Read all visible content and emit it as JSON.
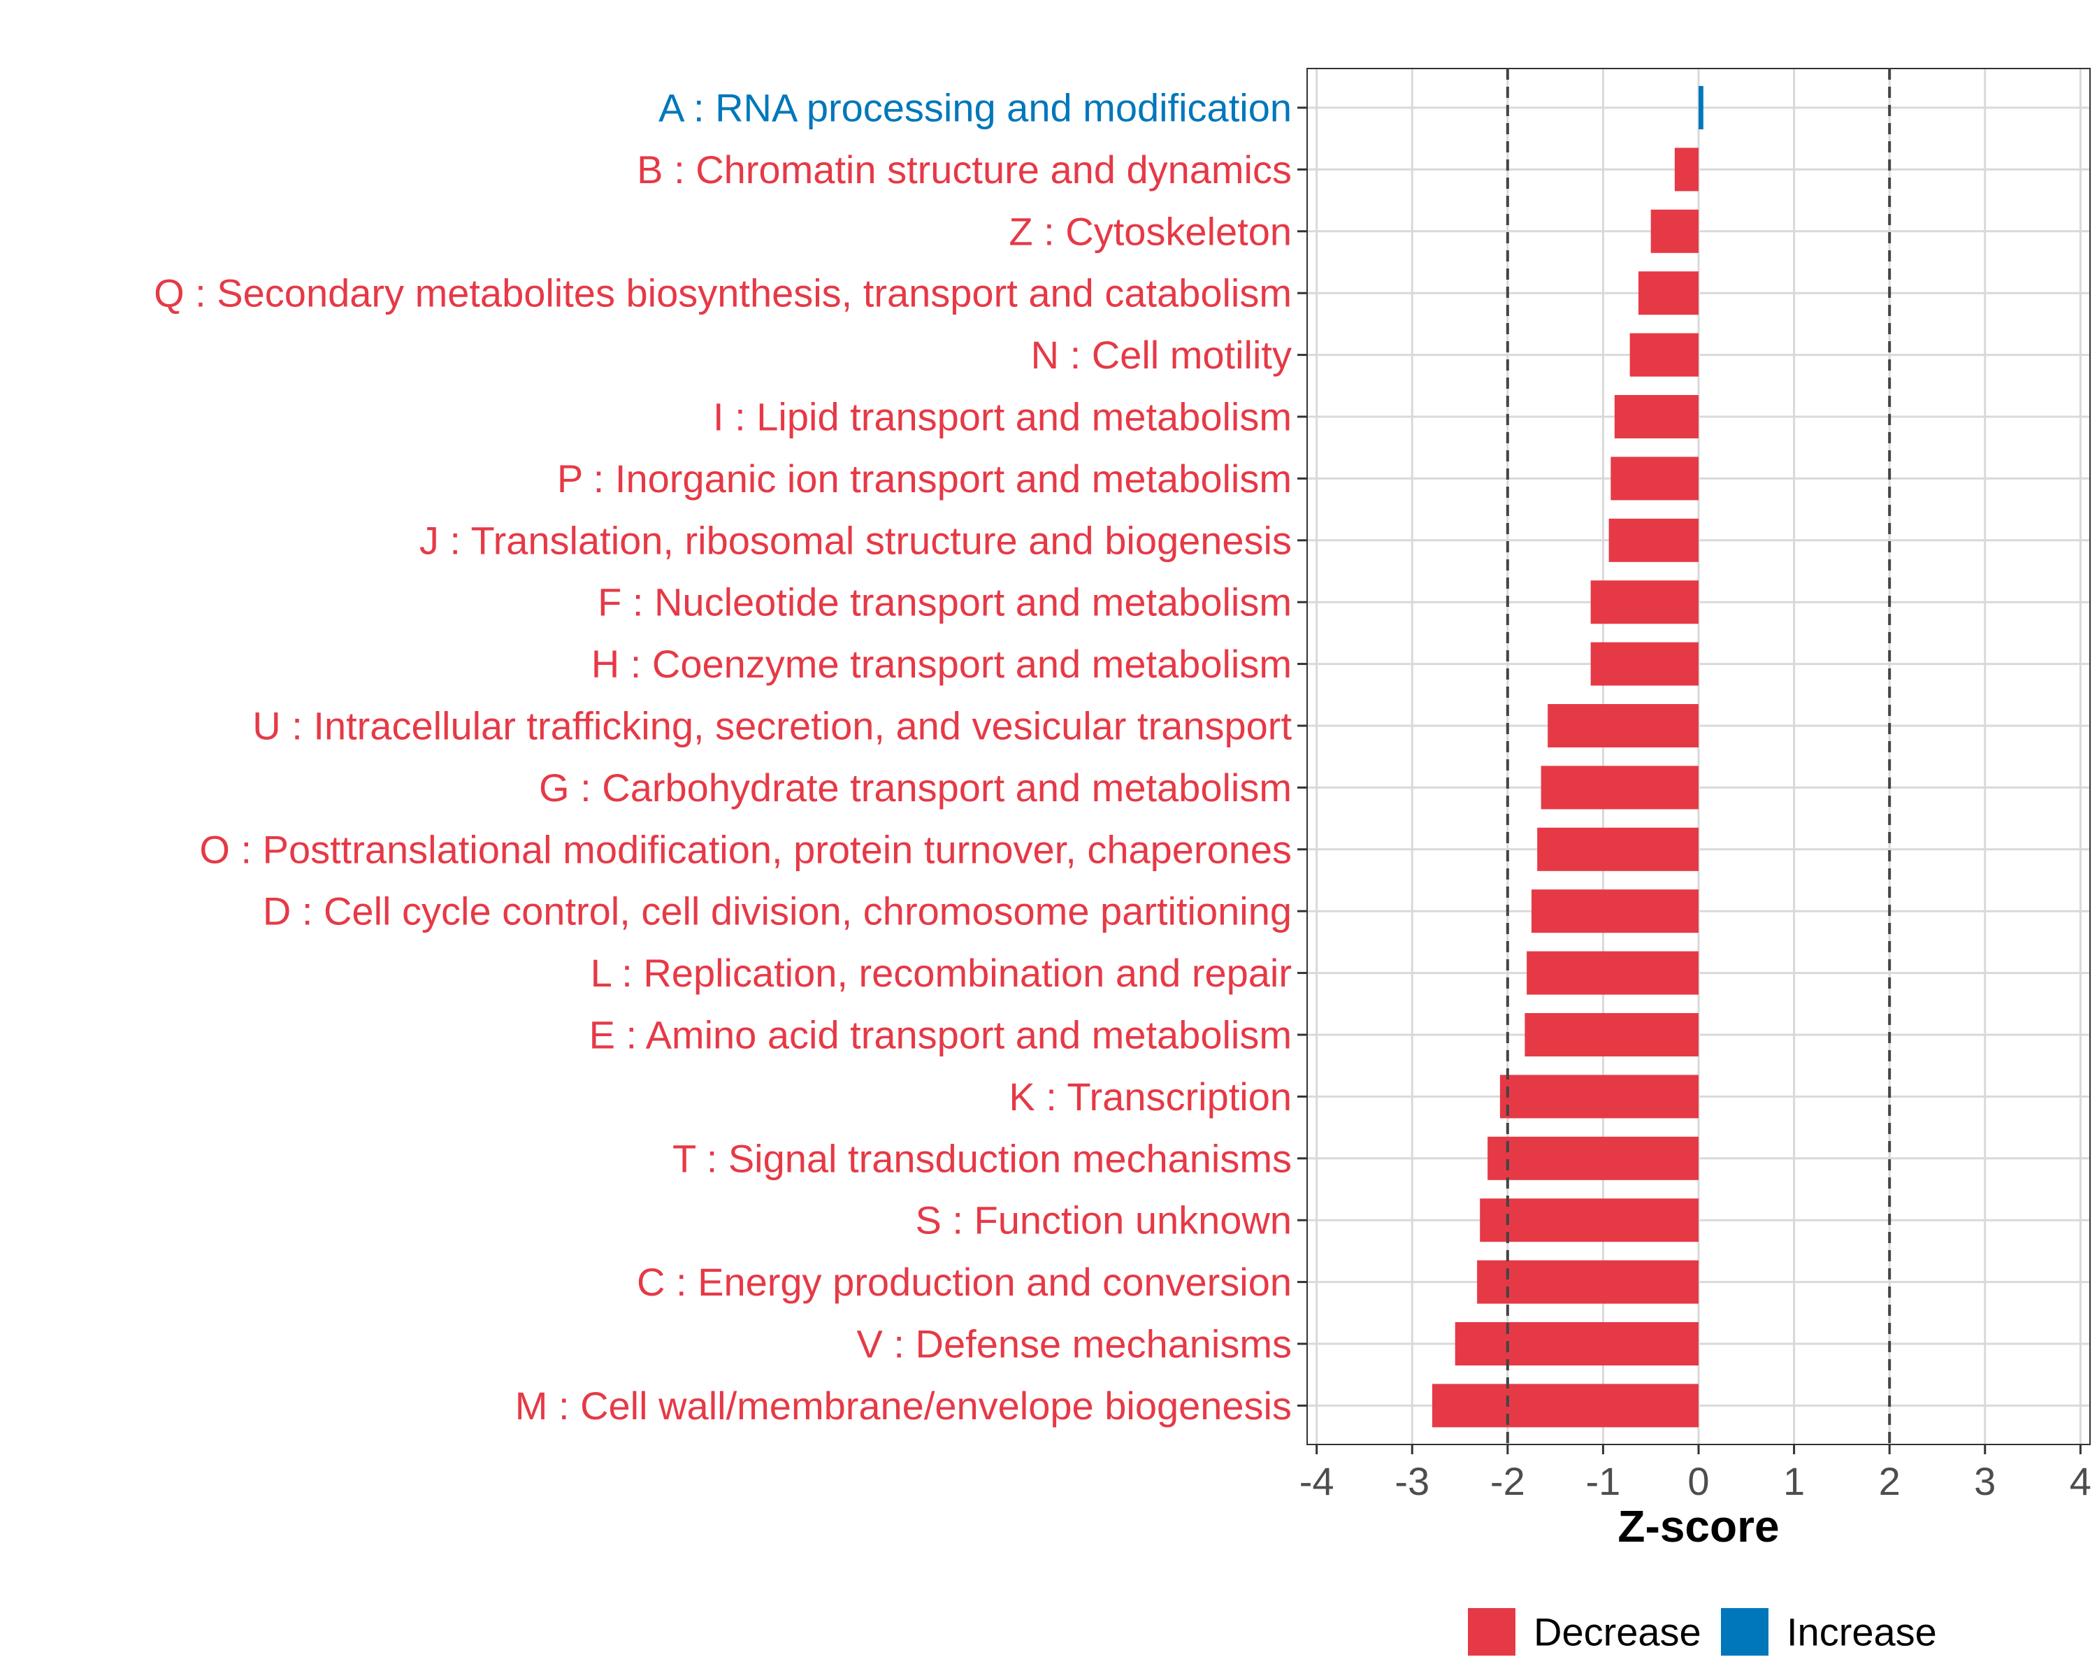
{
  "chart_data": {
    "type": "bar",
    "orientation": "horizontal",
    "xlabel": "Z-score",
    "ylabel": "",
    "xlim": [
      -4.1,
      4.1
    ],
    "x_ticks": [
      -4,
      -3,
      -2,
      -1,
      0,
      1,
      2,
      3,
      4
    ],
    "x_tick_labels": [
      "-4",
      "-3",
      "-2",
      "-1",
      "0",
      "1",
      "2",
      "3",
      "4"
    ],
    "reference_lines": [
      -2,
      2
    ],
    "grid": true,
    "colors": {
      "Decrease": "#E63946",
      "Increase": "#0077BB"
    },
    "categories": [
      "A : RNA processing and modification",
      "B : Chromatin structure and dynamics",
      "Z : Cytoskeleton",
      "Q : Secondary metabolites biosynthesis, transport and catabolism",
      "N : Cell motility",
      "I : Lipid transport and metabolism",
      "P : Inorganic ion transport and metabolism",
      "J : Translation, ribosomal structure and biogenesis",
      "F : Nucleotide transport and metabolism",
      "H : Coenzyme transport and metabolism",
      "U : Intracellular trafficking, secretion, and vesicular transport",
      "G : Carbohydrate transport and metabolism",
      "O : Posttranslational modification, protein turnover, chaperones",
      "D : Cell cycle control, cell division, chromosome partitioning",
      "L : Replication, recombination and repair",
      "E : Amino acid transport and metabolism",
      "K : Transcription",
      "T : Signal transduction mechanisms",
      "S : Function unknown",
      "C : Energy production and conversion",
      "V : Defense mechanisms",
      "M : Cell wall/membrane/envelope biogenesis"
    ],
    "values": [
      0.05,
      -0.25,
      -0.5,
      -0.63,
      -0.72,
      -0.88,
      -0.92,
      -0.94,
      -1.13,
      -1.13,
      -1.58,
      -1.65,
      -1.69,
      -1.75,
      -1.8,
      -1.82,
      -2.08,
      -2.21,
      -2.29,
      -2.32,
      -2.55,
      -2.79
    ],
    "directions": [
      "Increase",
      "Decrease",
      "Decrease",
      "Decrease",
      "Decrease",
      "Decrease",
      "Decrease",
      "Decrease",
      "Decrease",
      "Decrease",
      "Decrease",
      "Decrease",
      "Decrease",
      "Decrease",
      "Decrease",
      "Decrease",
      "Decrease",
      "Decrease",
      "Decrease",
      "Decrease",
      "Decrease",
      "Decrease"
    ],
    "legend": {
      "position": "bottom",
      "entries": [
        {
          "label": "Decrease",
          "color": "#E63946"
        },
        {
          "label": "Increase",
          "color": "#0077BB"
        }
      ]
    }
  }
}
